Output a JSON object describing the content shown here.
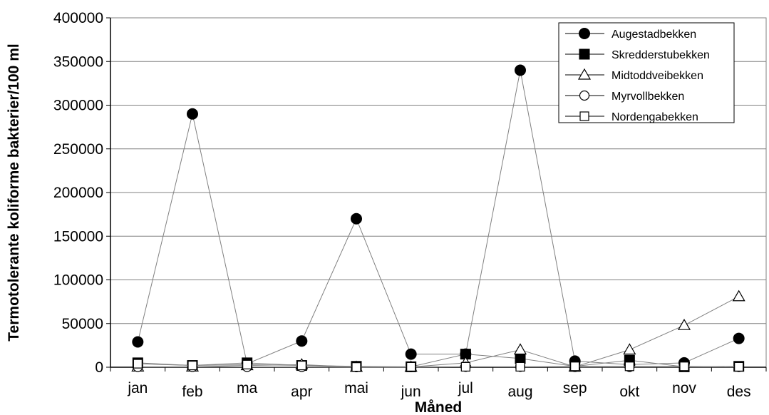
{
  "chart_data": {
    "type": "line",
    "title": "",
    "xlabel": "Måned",
    "ylabel": "Termotolerante koliforme bakterier/100 ml",
    "categories": [
      "jan",
      "feb",
      "ma",
      "apr",
      "mai",
      "jun",
      "jul",
      "aug",
      "sep",
      "okt",
      "nov",
      "des"
    ],
    "ylim": [
      0,
      400000
    ],
    "yticks": [
      0,
      50000,
      100000,
      150000,
      200000,
      250000,
      300000,
      350000,
      400000
    ],
    "grid": true,
    "legend_position": "top-right",
    "series": [
      {
        "name": "Augestadbekken",
        "marker": "circle-filled",
        "values": [
          29000,
          290000,
          4000,
          30000,
          170000,
          15000,
          15000,
          340000,
          7000,
          3000,
          5000,
          33000
        ]
      },
      {
        "name": "Skredderstubekken",
        "marker": "square-filled",
        "values": [
          5000,
          2000,
          5000,
          2000,
          1000,
          500,
          15000,
          10000,
          1000,
          8000,
          500,
          1000
        ]
      },
      {
        "name": "Midtoddveibekken",
        "marker": "triangle-open",
        "values": [
          500,
          500,
          2000,
          3000,
          200,
          300,
          5000,
          20000,
          500,
          20000,
          48000,
          81000
        ]
      },
      {
        "name": "Myrvollbekken",
        "marker": "circle-open",
        "values": [
          300,
          300,
          300,
          300,
          100,
          100,
          500,
          500,
          200,
          300,
          300,
          300
        ]
      },
      {
        "name": "Nordengabekken",
        "marker": "square-open",
        "values": [
          4000,
          2000,
          3000,
          2000,
          300,
          500,
          500,
          500,
          1000,
          1000,
          1000,
          500
        ]
      }
    ]
  }
}
